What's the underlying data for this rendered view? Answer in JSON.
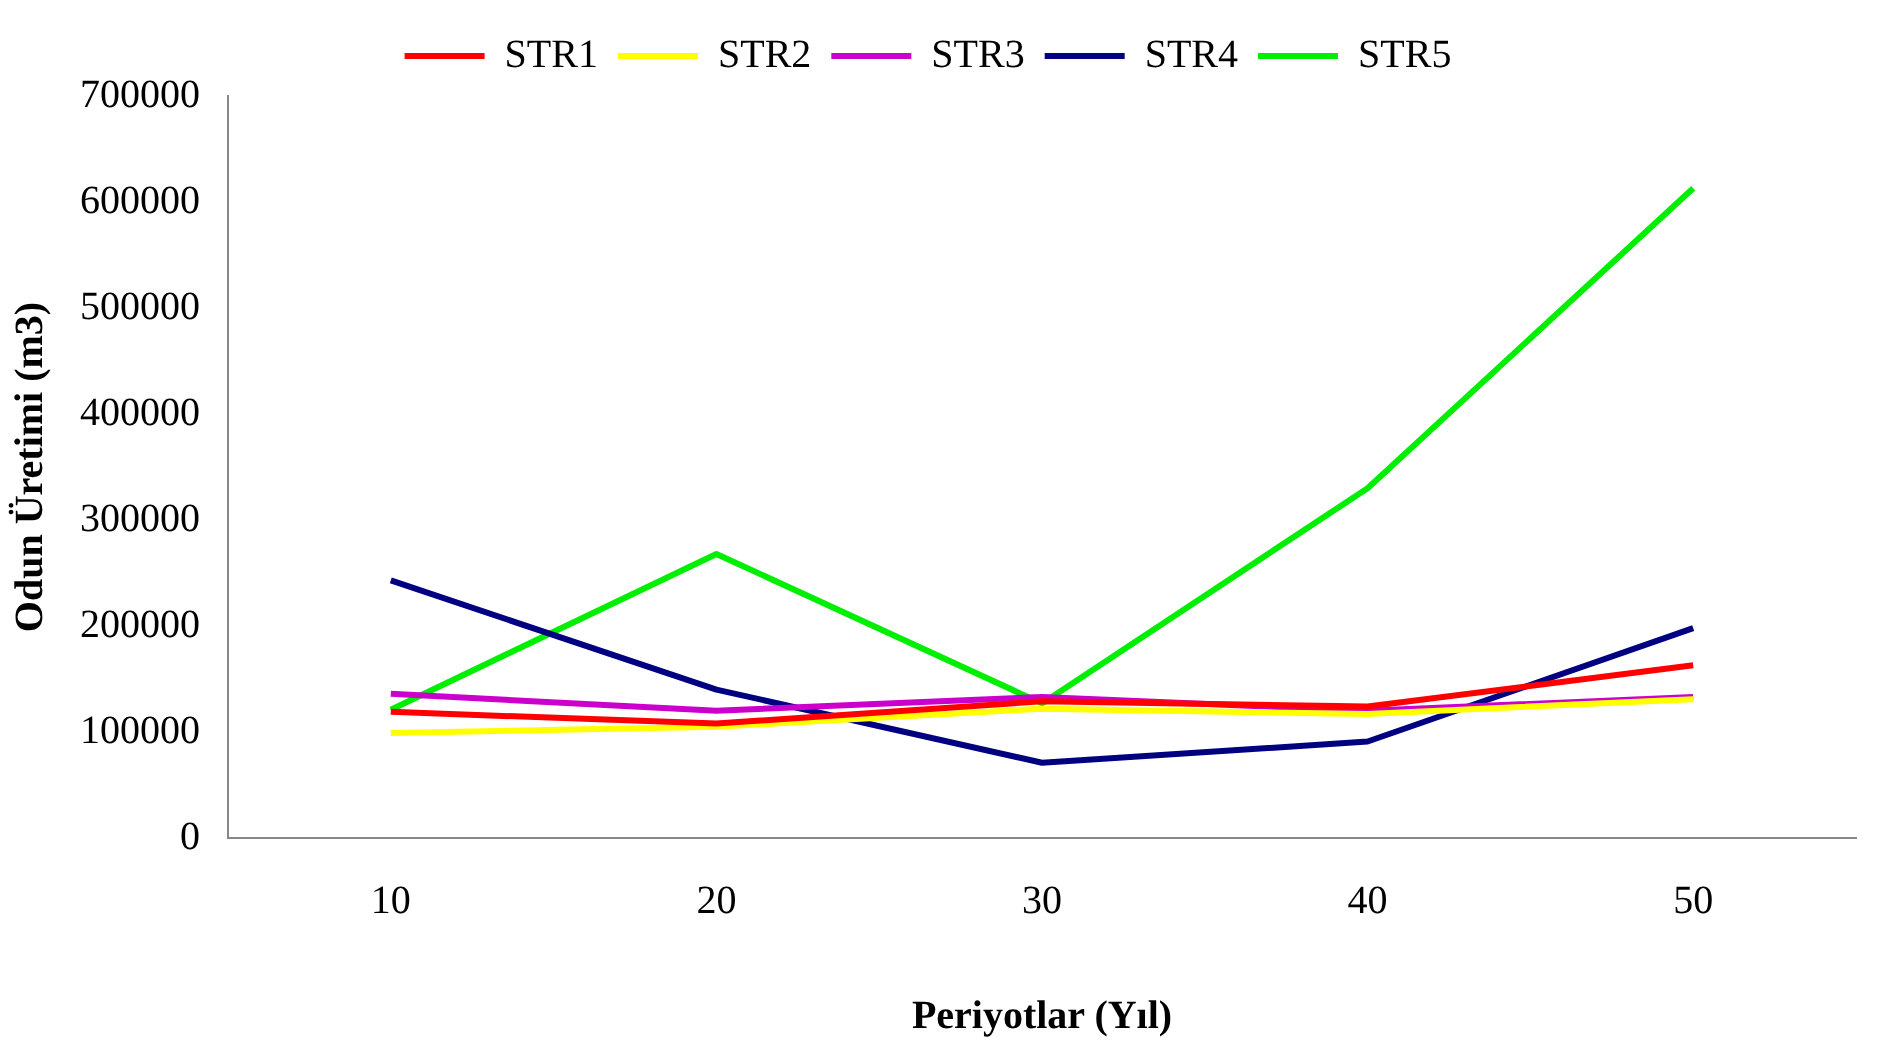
{
  "chart_data": {
    "type": "line",
    "xlabel": "Periyotlar (Yıl)",
    "ylabel": "Odun Üretimi (m3)",
    "categories": [
      "10",
      "20",
      "30",
      "40",
      "50"
    ],
    "series": [
      {
        "name": "STR1",
        "color": "#ff0000",
        "values": [
          119000,
          108000,
          129000,
          124000,
          163000
        ]
      },
      {
        "name": "STR2",
        "color": "#ffff00",
        "values": [
          99000,
          105000,
          122000,
          117000,
          131000
        ]
      },
      {
        "name": "STR3",
        "color": "#cc00cc",
        "values": [
          136000,
          120000,
          133000,
          120000,
          133000
        ]
      },
      {
        "name": "STR4",
        "color": "#000080",
        "values": [
          243000,
          140000,
          71000,
          91000,
          198000
        ]
      },
      {
        "name": "STR5",
        "color": "#00ee00",
        "values": [
          121000,
          268000,
          127000,
          330000,
          613000
        ]
      }
    ],
    "ylim": [
      0,
      700000
    ],
    "yticks": [
      0,
      100000,
      200000,
      300000,
      400000,
      500000,
      600000,
      700000
    ],
    "grid": false,
    "legend": "top",
    "marker": "none",
    "line_style": "solid"
  }
}
